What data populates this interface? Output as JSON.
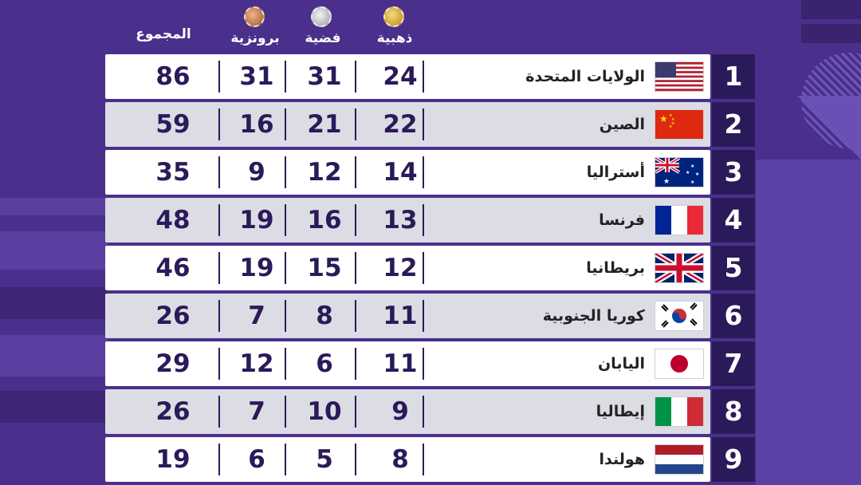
{
  "headers": {
    "gold": "ذهبية",
    "silver": "فضية",
    "bronze": "برونزية",
    "total": "المجموع"
  },
  "medal_icons": [
    "gold-medal-icon",
    "silver-medal-icon",
    "bronze-medal-icon"
  ],
  "colors": {
    "background": "#4a2f8c",
    "rank_box": "#2b1a5a",
    "row_light": "#ffffff",
    "row_shaded": "#dcdce4",
    "number_text": "#2b1a5a"
  },
  "rows": [
    {
      "rank": "1",
      "country": "الولايات المتحدة",
      "flag": "usa-flag",
      "gold": "24",
      "silver": "31",
      "bronze": "31",
      "total": "86"
    },
    {
      "rank": "2",
      "country": "الصين",
      "flag": "china-flag",
      "gold": "22",
      "silver": "21",
      "bronze": "16",
      "total": "59"
    },
    {
      "rank": "3",
      "country": "أستراليا",
      "flag": "australia-flag",
      "gold": "14",
      "silver": "12",
      "bronze": "9",
      "total": "35"
    },
    {
      "rank": "4",
      "country": "فرنسا",
      "flag": "france-flag",
      "gold": "13",
      "silver": "16",
      "bronze": "19",
      "total": "48"
    },
    {
      "rank": "5",
      "country": "بريطانيا",
      "flag": "uk-flag",
      "gold": "12",
      "silver": "15",
      "bronze": "19",
      "total": "46"
    },
    {
      "rank": "6",
      "country": "كوريا الجنوبية",
      "flag": "south-korea-flag",
      "gold": "11",
      "silver": "8",
      "bronze": "7",
      "total": "26"
    },
    {
      "rank": "7",
      "country": "اليابان",
      "flag": "japan-flag",
      "gold": "11",
      "silver": "6",
      "bronze": "12",
      "total": "29"
    },
    {
      "rank": "8",
      "country": "إيطاليا",
      "flag": "italy-flag",
      "gold": "9",
      "silver": "10",
      "bronze": "7",
      "total": "26"
    },
    {
      "rank": "9",
      "country": "هولندا",
      "flag": "netherlands-flag",
      "gold": "8",
      "silver": "5",
      "bronze": "6",
      "total": "19"
    }
  ]
}
